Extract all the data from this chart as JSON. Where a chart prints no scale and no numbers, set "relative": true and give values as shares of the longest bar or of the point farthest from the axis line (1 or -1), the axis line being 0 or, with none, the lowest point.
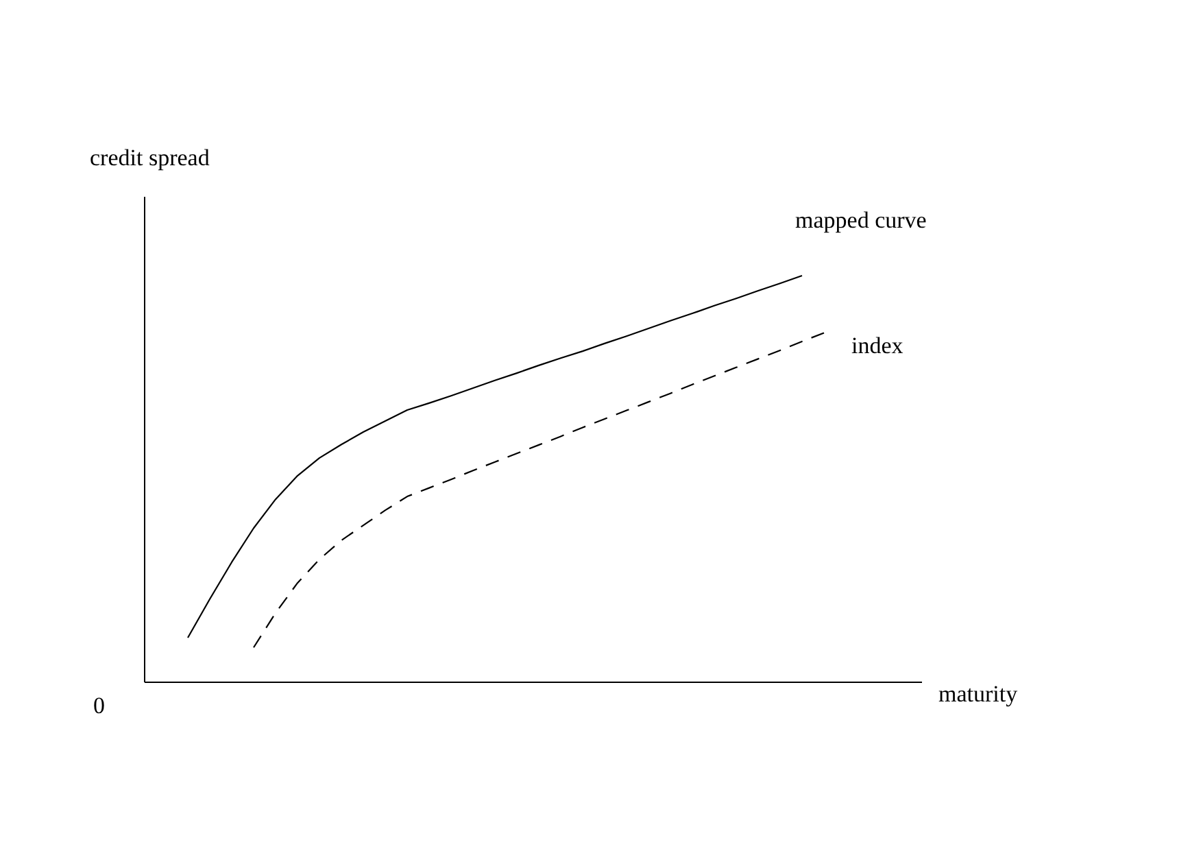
{
  "chart_data": {
    "type": "line",
    "relative": true,
    "ylabel": "credit spread",
    "xlabel": "maturity",
    "annotations": [
      "0"
    ],
    "legend": false,
    "marker": "none",
    "categories": [
      null,
      null,
      null,
      null,
      null,
      null,
      null,
      null,
      null,
      null,
      null,
      null,
      null,
      null,
      null,
      null,
      null,
      null,
      null,
      null,
      null,
      null,
      null,
      null,
      null,
      null,
      null,
      null,
      null,
      null
    ],
    "series": [
      {
        "name": "mapped curve",
        "color": "#000000",
        "line_style": "solid",
        "values": [
          0.108,
          0.203,
          0.294,
          0.378,
          0.449,
          0.507,
          0.551,
          0.584,
          0.615,
          0.642,
          0.669,
          0.686,
          0.704,
          0.723,
          0.742,
          0.76,
          0.779,
          0.797,
          0.814,
          0.833,
          0.851,
          0.87,
          0.889,
          0.907,
          0.926,
          0.944,
          0.963,
          0.981,
          1.0,
          null
        ]
      },
      {
        "name": "index",
        "color": "#000000",
        "line_style": "dashed",
        "values": [
          null,
          null,
          null,
          0.084,
          0.169,
          0.243,
          0.301,
          0.348,
          0.385,
          0.422,
          0.456,
          0.477,
          0.498,
          0.52,
          0.541,
          0.562,
          0.583,
          0.604,
          0.626,
          0.647,
          0.668,
          0.689,
          0.71,
          0.732,
          0.753,
          0.774,
          0.795,
          0.816,
          0.838,
          0.859
        ]
      }
    ]
  }
}
